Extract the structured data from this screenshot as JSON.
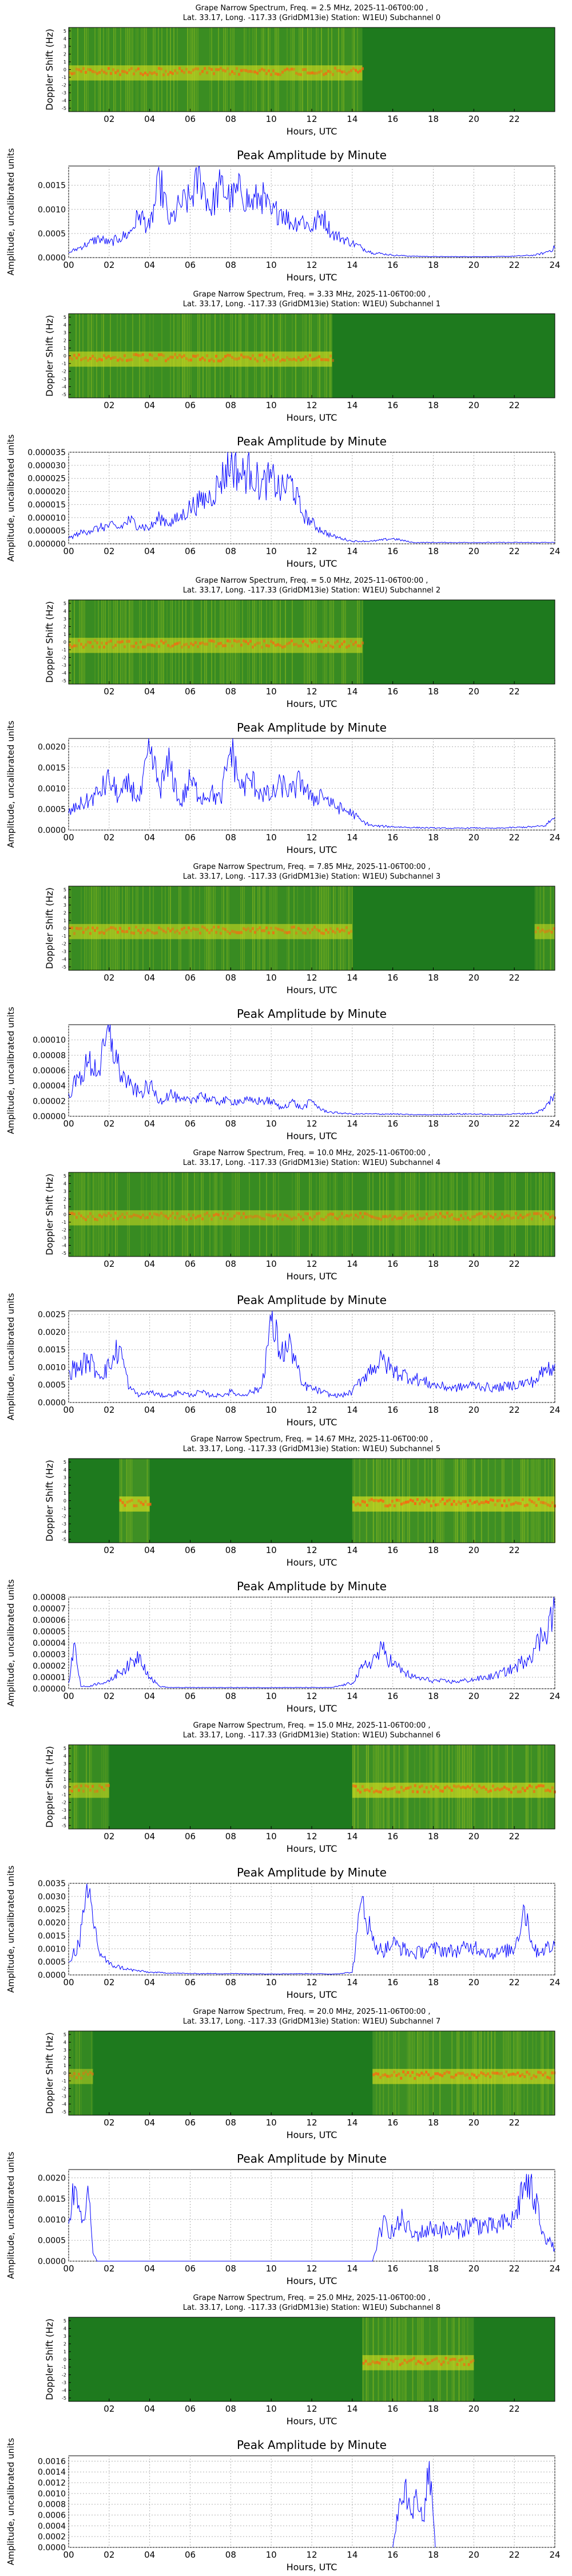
{
  "x_axis_label": "Hours, UTC",
  "spectrum_ylabel": "Doppler Shift (Hz)",
  "spectrum_yticks": [
    "5",
    "4",
    "3",
    "2",
    "1",
    "0",
    "-1",
    "-2",
    "-3",
    "-4",
    "-5"
  ],
  "spectrum_xticks": [
    "02",
    "04",
    "06",
    "08",
    "10",
    "12",
    "14",
    "16",
    "18",
    "20",
    "22"
  ],
  "amp_title": "Peak Amplitude by Minute",
  "amp_ylabel": "Amplitude, uncalibrated units",
  "amp_xticks": [
    "00",
    "02",
    "04",
    "06",
    "08",
    "10",
    "12",
    "14",
    "16",
    "18",
    "20",
    "22",
    "24"
  ],
  "colors": {
    "line": "#0000ff",
    "grid": "#b0b0b0",
    "spec_low": "#1e7a1e",
    "spec_mid": "#d8e020",
    "spec_high": "#ff6010"
  },
  "subchannels": [
    {
      "spectrum_title_1": "Grape Narrow Spectrum, Freq. = 2.5 MHz, 2025-11-06T00:00 ,",
      "spectrum_title_2": "Lat.  33.17, Long. -117.33 (GridDM13ie) Station: W1EU) Subchannel 0",
      "amp_yticks": [
        "0.0015",
        "0.0010",
        "0.0005",
        "0.0000"
      ],
      "spectrum_activity": [
        [
          0,
          14.5,
          0.8
        ]
      ],
      "chart_data": {
        "type": "line",
        "title": "Peak Amplitude by Minute",
        "xlabel": "Hours, UTC",
        "ylabel": "Amplitude, uncalibrated units",
        "ylim": [
          0,
          0.0019
        ],
        "grid": true,
        "x": [
          0,
          0.5,
          1,
          1.5,
          2,
          2.5,
          3,
          3.5,
          4,
          4.5,
          5,
          5.5,
          6,
          6.5,
          7,
          7.5,
          8,
          8.5,
          9,
          9.5,
          10,
          10.5,
          11,
          11.5,
          12,
          12.5,
          13,
          13.5,
          14,
          14.5,
          15,
          15.5,
          16,
          17,
          18,
          19,
          20,
          21,
          22,
          22.5,
          23,
          23.5,
          24
        ],
        "y": [
          0.0001,
          0.0002,
          0.0003,
          0.0004,
          0.0003,
          0.0004,
          0.0005,
          0.0009,
          0.0006,
          0.0016,
          0.0007,
          0.0011,
          0.0012,
          0.0017,
          0.001,
          0.0015,
          0.0012,
          0.0014,
          0.0011,
          0.0013,
          0.0009,
          0.001,
          0.0007,
          0.0008,
          0.0006,
          0.0009,
          0.0005,
          0.0004,
          0.0003,
          0.0002,
          0.0001,
          8e-05,
          5e-05,
          3e-05,
          2e-05,
          2e-05,
          2e-05,
          2e-05,
          3e-05,
          4e-05,
          5e-05,
          0.0001,
          0.0002
        ]
      }
    },
    {
      "spectrum_title_1": "Grape Narrow Spectrum, Freq. = 3.33 MHz, 2025-11-06T00:00 ,",
      "spectrum_title_2": "Lat.  33.17, Long. -117.33 (GridDM13ie) Station: W1EU) Subchannel 1",
      "amp_yticks": [
        "0.000035",
        "0.000030",
        "0.000025",
        "0.000020",
        "0.000015",
        "0.000010",
        "0.000005",
        "0.000000"
      ],
      "spectrum_activity": [
        [
          0,
          13,
          0.8
        ]
      ],
      "chart_data": {
        "type": "line",
        "title": "Peak Amplitude by Minute",
        "xlabel": "Hours, UTC",
        "ylabel": "Amplitude, uncalibrated units",
        "ylim": [
          0,
          3.5e-05
        ],
        "grid": true,
        "x": [
          0,
          0.5,
          1,
          1.5,
          2,
          2.5,
          3,
          3.5,
          4,
          4.5,
          5,
          5.5,
          6,
          6.5,
          7,
          7.5,
          8,
          8.5,
          9,
          9.5,
          10,
          10.5,
          11,
          11.5,
          12,
          12.5,
          13,
          13.5,
          14,
          14.5,
          15,
          16,
          17,
          18,
          19,
          20,
          21,
          22,
          23,
          24
        ],
        "y": [
          2e-06,
          4e-06,
          5e-06,
          6e-06,
          7e-06,
          6e-06,
          9e-06,
          7e-06,
          6e-06,
          1e-05,
          8e-06,
          1e-05,
          1.4e-05,
          1.6e-05,
          1.8e-05,
          2.4e-05,
          3.1e-05,
          2.6e-05,
          2.8e-05,
          2.2e-05,
          2.5e-05,
          2e-05,
          2.4e-05,
          1.2e-05,
          8e-06,
          5e-06,
          3e-06,
          2e-06,
          1e-06,
          1e-06,
          1e-06,
          2e-06,
          5e-07,
          5e-07,
          5e-07,
          5e-07,
          5e-07,
          5e-07,
          5e-07,
          5e-07
        ]
      }
    },
    {
      "spectrum_title_1": "Grape Narrow Spectrum, Freq. = 5.0 MHz, 2025-11-06T00:00 ,",
      "spectrum_title_2": "Lat.  33.17, Long. -117.33 (GridDM13ie) Station: W1EU) Subchannel 2",
      "amp_yticks": [
        "0.0020",
        "0.0015",
        "0.0010",
        "0.0005",
        "0.0000"
      ],
      "spectrum_activity": [
        [
          0,
          14.5,
          0.75
        ]
      ],
      "chart_data": {
        "type": "line",
        "title": "Peak Amplitude by Minute",
        "xlabel": "Hours, UTC",
        "ylabel": "Amplitude, uncalibrated units",
        "ylim": [
          0,
          0.0022
        ],
        "grid": true,
        "x": [
          0,
          0.5,
          1,
          1.5,
          2,
          2.5,
          3,
          3.5,
          4,
          4.5,
          5,
          5.5,
          6,
          6.5,
          7,
          7.5,
          8,
          8.5,
          9,
          9.5,
          10,
          10.5,
          11,
          11.5,
          12,
          12.5,
          13,
          13.5,
          14,
          14.5,
          15,
          16,
          17,
          18,
          19,
          20,
          21,
          22,
          23,
          23.5,
          24
        ],
        "y": [
          0.0004,
          0.0006,
          0.0007,
          0.0009,
          0.0012,
          0.0008,
          0.0011,
          0.0007,
          0.0019,
          0.001,
          0.0016,
          0.0006,
          0.0012,
          0.0008,
          0.0009,
          0.0007,
          0.002,
          0.001,
          0.0012,
          0.0009,
          0.0008,
          0.0011,
          0.0009,
          0.0012,
          0.0007,
          0.0009,
          0.0006,
          0.0005,
          0.0004,
          0.0002,
          0.0001,
          8e-05,
          6e-05,
          5e-05,
          4e-05,
          5e-05,
          4e-05,
          6e-05,
          8e-05,
          0.0001,
          0.0003
        ]
      }
    },
    {
      "spectrum_title_1": "Grape Narrow Spectrum, Freq. = 7.85 MHz, 2025-11-06T00:00 ,",
      "spectrum_title_2": "Lat.  33.17, Long. -117.33 (GridDM13ie) Station: W1EU) Subchannel 3",
      "amp_yticks": [
        "0.00010",
        "0.00008",
        "0.00006",
        "0.00004",
        "0.00002",
        "0.00000"
      ],
      "spectrum_activity": [
        [
          0,
          14,
          0.75
        ],
        [
          23,
          24,
          0.7
        ]
      ],
      "chart_data": {
        "type": "line",
        "title": "Peak Amplitude by Minute",
        "xlabel": "Hours, UTC",
        "ylabel": "Amplitude, uncalibrated units",
        "ylim": [
          0,
          0.00012
        ],
        "grid": true,
        "x": [
          0,
          0.5,
          1,
          1.5,
          2,
          2.5,
          3,
          3.5,
          4,
          4.5,
          5,
          5.5,
          6,
          6.5,
          7,
          7.5,
          8,
          8.5,
          9,
          9.5,
          10,
          10.5,
          11,
          11.5,
          12,
          12.5,
          13,
          14,
          15,
          16,
          17,
          18,
          19,
          20,
          21,
          22,
          23,
          23.5,
          24
        ],
        "y": [
          3e-05,
          5e-05,
          7e-05,
          6e-05,
          0.00011,
          6e-05,
          4e-05,
          3e-05,
          4e-05,
          2e-05,
          3e-05,
          2e-05,
          2e-05,
          3e-05,
          2e-05,
          2e-05,
          2e-05,
          2e-05,
          2e-05,
          2e-05,
          2e-05,
          1e-05,
          2e-05,
          1e-05,
          2e-05,
          8e-06,
          5e-06,
          3e-06,
          3e-06,
          3e-06,
          2e-06,
          2e-06,
          3e-06,
          3e-06,
          2e-06,
          3e-06,
          4e-06,
          1e-05,
          3e-05
        ]
      }
    },
    {
      "spectrum_title_1": "Grape Narrow Spectrum, Freq. = 10.0 MHz, 2025-11-06T00:00 ,",
      "spectrum_title_2": "Lat.  33.17, Long. -117.33 (GridDM13ie) Station: W1EU) Subchannel 4",
      "amp_yticks": [
        "0.0025",
        "0.0020",
        "0.0015",
        "0.0010",
        "0.0005",
        "0.0000"
      ],
      "spectrum_activity": [
        [
          0,
          24,
          0.7
        ]
      ],
      "chart_data": {
        "type": "line",
        "title": "Peak Amplitude by Minute",
        "xlabel": "Hours, UTC",
        "ylabel": "Amplitude, uncalibrated units",
        "ylim": [
          0,
          0.0026
        ],
        "grid": true,
        "x": [
          0,
          0.5,
          1,
          1.5,
          2,
          2.5,
          3,
          3.5,
          4,
          4.5,
          5,
          5.5,
          6,
          6.5,
          7,
          7.5,
          8,
          8.5,
          9,
          9.5,
          10,
          10.5,
          11,
          11.5,
          12,
          12.5,
          13,
          13.5,
          14,
          14.5,
          15,
          15.5,
          16,
          17,
          18,
          19,
          20,
          21,
          22,
          23,
          23.5,
          24
        ],
        "y": [
          0.0009,
          0.001,
          0.0012,
          0.0008,
          0.001,
          0.0016,
          0.0004,
          0.0002,
          0.0003,
          0.0002,
          0.0002,
          0.0003,
          0.0002,
          0.0003,
          0.0002,
          0.0002,
          0.0003,
          0.0002,
          0.0003,
          0.0004,
          0.0023,
          0.0014,
          0.0016,
          0.0005,
          0.0004,
          0.0003,
          0.0002,
          0.0002,
          0.0003,
          0.0007,
          0.001,
          0.0012,
          0.0009,
          0.0007,
          0.0005,
          0.0004,
          0.0005,
          0.0004,
          0.0005,
          0.0006,
          0.0009,
          0.0011
        ]
      }
    },
    {
      "spectrum_title_1": "Grape Narrow Spectrum, Freq. = 14.67 MHz, 2025-11-06T00:00 ,",
      "spectrum_title_2": "Lat.  33.17, Long. -117.33 (GridDM13ie) Station: W1EU) Subchannel 5",
      "amp_yticks": [
        "0.00008",
        "0.00007",
        "0.00006",
        "0.00005",
        "0.00004",
        "0.00003",
        "0.00002",
        "0.00001",
        "0.00000"
      ],
      "spectrum_activity": [
        [
          2.5,
          4,
          0.9
        ],
        [
          14,
          24,
          0.9
        ]
      ],
      "chart_data": {
        "type": "line",
        "title": "Peak Amplitude by Minute",
        "xlabel": "Hours, UTC",
        "ylabel": "Amplitude, uncalibrated units",
        "ylim": [
          0,
          8e-05
        ],
        "grid": true,
        "x": [
          0,
          0.3,
          0.6,
          1,
          1.5,
          2,
          2.5,
          3,
          3.5,
          4,
          4.5,
          5,
          6,
          7,
          8,
          9,
          10,
          11,
          12,
          13,
          14,
          14.5,
          15,
          15.5,
          16,
          16.5,
          17,
          18,
          19,
          20,
          21,
          22,
          22.5,
          23,
          23.5,
          24
        ],
        "y": [
          5e-06,
          4e-05,
          2e-06,
          2e-06,
          5e-06,
          6e-06,
          1.5e-05,
          2e-05,
          3e-05,
          1e-05,
          2e-06,
          1e-06,
          1e-06,
          1e-06,
          1e-06,
          1e-06,
          1e-06,
          1e-06,
          1e-06,
          1e-06,
          5e-06,
          1.8e-05,
          2.5e-05,
          3.4e-05,
          2.2e-05,
          1.5e-05,
          1e-05,
          7e-06,
          6e-06,
          8e-06,
          1.1e-05,
          1.8e-05,
          2.5e-05,
          3.5e-05,
          5e-05,
          7e-05
        ]
      }
    },
    {
      "spectrum_title_1": "Grape Narrow Spectrum, Freq. = 15.0 MHz, 2025-11-06T00:00 ,",
      "spectrum_title_2": "Lat.  33.17, Long. -117.33 (GridDM13ie) Station: W1EU) Subchannel 6",
      "amp_yticks": [
        "0.0035",
        "0.0030",
        "0.0025",
        "0.0020",
        "0.0015",
        "0.0010",
        "0.0005",
        "0.0000"
      ],
      "spectrum_activity": [
        [
          0,
          2,
          0.7
        ],
        [
          14,
          24,
          0.85
        ]
      ],
      "chart_data": {
        "type": "line",
        "title": "Peak Amplitude by Minute",
        "xlabel": "Hours, UTC",
        "ylabel": "Amplitude, uncalibrated units",
        "ylim": [
          0,
          0.0035
        ],
        "grid": true,
        "x": [
          0,
          0.5,
          1,
          1.5,
          2,
          3,
          4,
          6,
          8,
          10,
          12,
          13,
          14,
          14.5,
          15,
          15.5,
          16,
          17,
          18,
          19,
          20,
          21,
          22,
          22.5,
          23,
          24
        ],
        "y": [
          0.0005,
          0.0012,
          0.0031,
          0.0009,
          0.0004,
          0.0002,
          0.0001,
          5e-05,
          5e-05,
          4e-05,
          5e-05,
          3e-05,
          0.0001,
          0.003,
          0.0013,
          0.0009,
          0.0012,
          0.0008,
          0.001,
          0.0009,
          0.0011,
          0.0008,
          0.001,
          0.0026,
          0.0009,
          0.0011
        ]
      }
    },
    {
      "spectrum_title_1": "Grape Narrow Spectrum, Freq. = 20.0 MHz, 2025-11-06T00:00 ,",
      "spectrum_title_2": "Lat.  33.17, Long. -117.33 (GridDM13ie) Station: W1EU) Subchannel 7",
      "amp_yticks": [
        "0.0020",
        "0.0015",
        "0.0010",
        "0.0005",
        "0.0000"
      ],
      "spectrum_activity": [
        [
          0,
          1.2,
          0.6
        ],
        [
          15,
          24,
          0.85
        ]
      ],
      "chart_data": {
        "type": "line",
        "title": "Peak Amplitude by Minute",
        "xlabel": "Hours, UTC",
        "ylabel": "Amplitude, uncalibrated units",
        "ylim": [
          0,
          0.0022
        ],
        "grid": true,
        "x": [
          0,
          0.3,
          0.6,
          1,
          1.2,
          1.4,
          2,
          4,
          6,
          8,
          10,
          12,
          14,
          15,
          15.5,
          16,
          16.5,
          17,
          18,
          19,
          20,
          21,
          22,
          22.5,
          23,
          23.5,
          24
        ],
        "y": [
          0.0009,
          0.0018,
          0.0012,
          0.0015,
          0.0002,
          0,
          0,
          0,
          0,
          0,
          0,
          0,
          0,
          0,
          0.0009,
          0.0007,
          0.001,
          0.0006,
          0.0008,
          0.0007,
          0.0009,
          0.0008,
          0.001,
          0.0019,
          0.0015,
          0.0006,
          0.0003
        ]
      }
    },
    {
      "spectrum_title_1": "Grape Narrow Spectrum, Freq. = 25.0 MHz, 2025-11-06T00:00 ,",
      "spectrum_title_2": "Lat.  33.17, Long. -117.33 (GridDM13ie) Station: W1EU) Subchannel 8",
      "amp_yticks": [
        "0.0016",
        "0.0014",
        "0.0012",
        "0.0010",
        "0.0008",
        "0.0006",
        "0.0004",
        "0.0002",
        "0.0000"
      ],
      "spectrum_activity": [
        [
          14.5,
          20,
          0.8
        ]
      ],
      "chart_data": {
        "type": "line",
        "title": "Peak Amplitude by Minute",
        "xlabel": "Hours, UTC",
        "ylabel": "Amplitude, uncalibrated units",
        "ylim": [
          0,
          0.0017
        ],
        "grid": true,
        "x": [
          16,
          16.3,
          16.6,
          16.9,
          17.2,
          17.5,
          17.8,
          18.1
        ],
        "y": [
          0,
          0.0008,
          0.0012,
          0.0006,
          0.0009,
          0.0005,
          0.0016,
          0
        ]
      }
    }
  ]
}
